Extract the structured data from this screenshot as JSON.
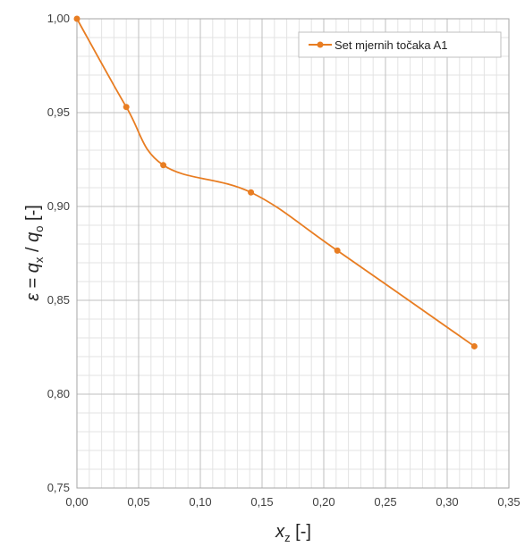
{
  "chart_data": {
    "type": "line",
    "smoothed": true,
    "series": [
      {
        "name": "Set mjernih točaka A1",
        "color": "#E87D22",
        "x": [
          0.0,
          0.04,
          0.07,
          0.141,
          0.211,
          0.322
        ],
        "y": [
          1.0,
          0.953,
          0.922,
          0.9075,
          0.8765,
          0.8255
        ]
      }
    ],
    "xlim": [
      0,
      0.35
    ],
    "ylim": [
      0.75,
      1.0
    ],
    "x_ticks": [
      "0,00",
      "0,05",
      "0,10",
      "0,15",
      "0,20",
      "0,25",
      "0,30",
      "0,35"
    ],
    "y_ticks": [
      "0,75",
      "0,80",
      "0,85",
      "0,90",
      "0,95",
      "1,00"
    ],
    "xlabel": {
      "main": "x",
      "sub": "z",
      "rest": " [-]"
    },
    "ylabel": {
      "eps": "ε",
      "mid1": " = ",
      "q1": "q",
      "sub1": "x",
      "mid2": " / ",
      "q2": "q",
      "sub2": "o",
      "rest": " [-]"
    },
    "grid": true,
    "legend_position": "top-right"
  }
}
